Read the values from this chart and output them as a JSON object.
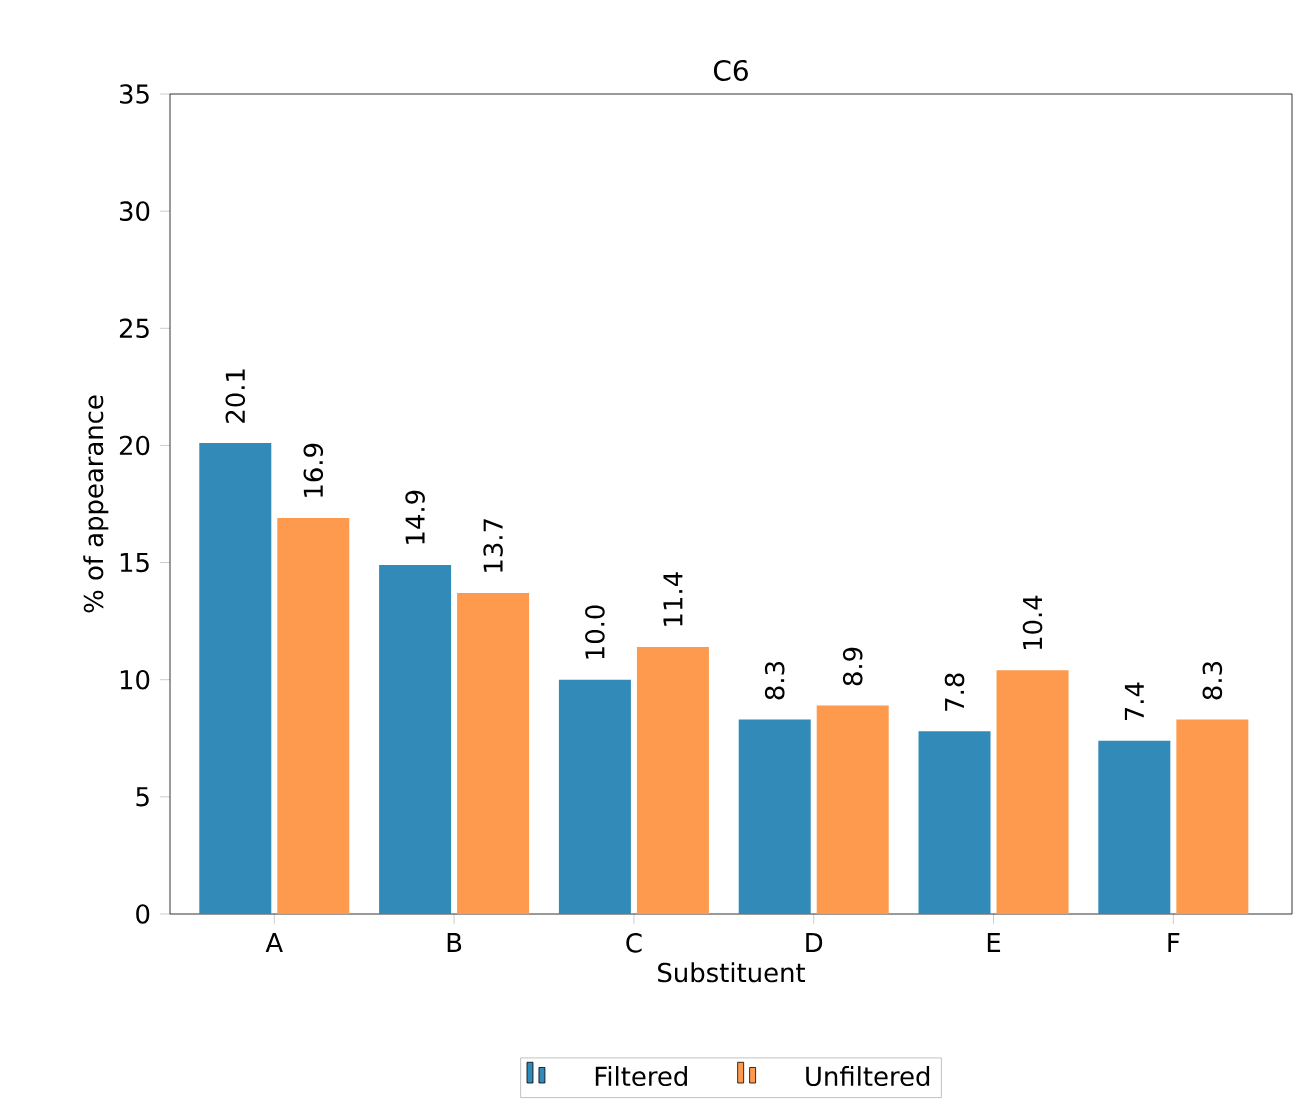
{
  "chart_data": {
    "type": "bar",
    "title": "C6",
    "xlabel": "Substituent",
    "ylabel": "% of appearance",
    "categories": [
      "A",
      "B",
      "C",
      "D",
      "E",
      "F"
    ],
    "series": [
      {
        "name": "Filtered",
        "color": "#318ab8",
        "values": [
          20.1,
          14.9,
          10.0,
          8.3,
          7.8,
          7.4
        ],
        "value_labels": [
          "20.1",
          "14.9",
          "10.0",
          "8.3",
          "7.8",
          "7.4"
        ]
      },
      {
        "name": "Unfiltered",
        "color": "#fd9a4d",
        "values": [
          16.9,
          13.7,
          11.4,
          8.9,
          10.4,
          8.3
        ],
        "value_labels": [
          "16.9",
          "13.7",
          "11.4",
          "8.9",
          "10.4",
          "8.3"
        ]
      }
    ],
    "ylim": [
      0,
      35
    ],
    "yticks": [
      0,
      5,
      10,
      15,
      20,
      25,
      30,
      35
    ],
    "grid": false,
    "legend": "bottom"
  }
}
